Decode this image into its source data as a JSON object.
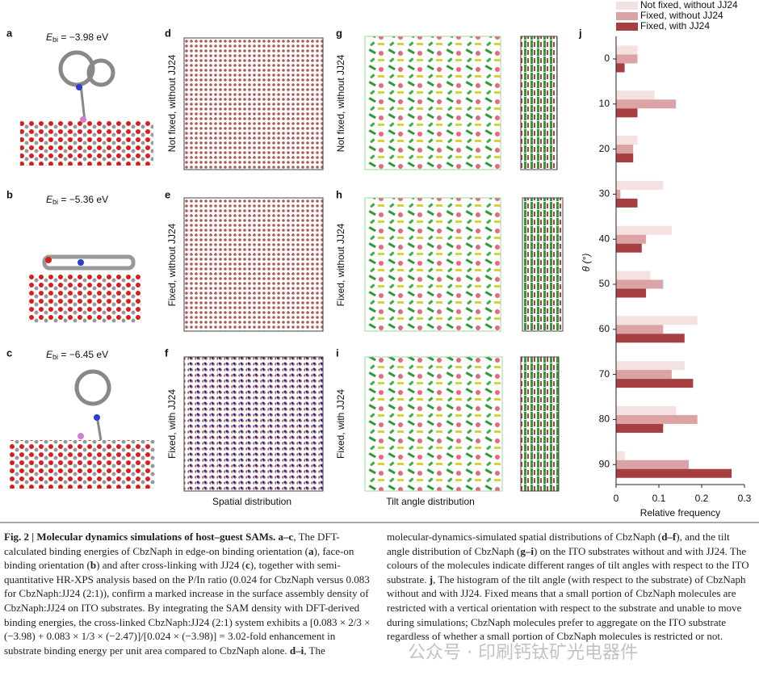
{
  "figure": {
    "panels": {
      "a": "a",
      "b": "b",
      "c": "c",
      "d": "d",
      "e": "e",
      "f": "f",
      "g": "g",
      "h": "h",
      "i": "i",
      "j": "j"
    },
    "energies": [
      {
        "symbol": "E",
        "subscript": "bi",
        "value": " = −3.98 eV"
      },
      {
        "symbol": "E",
        "subscript": "bi",
        "value": " = −5.36 eV"
      },
      {
        "symbol": "E",
        "subscript": "bi",
        "value": " = −6.45 eV"
      }
    ],
    "conditions": [
      "Not fixed, without JJ24",
      "Fixed, without JJ24",
      "Fixed, with JJ24"
    ],
    "column_titles": [
      "Spatial distribution",
      "Tilt angle distribution"
    ],
    "caption": {
      "segments": [
        {
          "text": "Fig. 2 | Molecular dynamics simulations of host–guest SAMs. a–c",
          "bold": true
        },
        {
          "text": ", The DFT-calculated binding energies of CbzNaph in edge-on binding orientation (",
          "bold": false
        },
        {
          "text": "a",
          "bold": true
        },
        {
          "text": "), face-on binding orientation (",
          "bold": false
        },
        {
          "text": "b",
          "bold": true
        },
        {
          "text": ") and after cross-linking with JJ24 (",
          "bold": false
        },
        {
          "text": "c",
          "bold": true
        },
        {
          "text": "), together with semi-quantitative HR-XPS analysis based on the P/In ratio (0.024 for CbzNaph versus 0.083 for CbzNaph:JJ24 (2:1)), confirm a marked increase in the surface assembly density of CbzNaph:JJ24 on ITO substrates. By integrating the SAM density with DFT-derived binding energies, the cross-linked CbzNaph:JJ24 (2:1) system exhibits a [0.083 × 2/3 × (−3.98) + 0.083 × 1/3 × (−2.47)]/[0.024 × (−3.98)] = 3.02-fold enhancement in substrate binding energy per unit area compared to CbzNaph alone. ",
          "bold": false
        },
        {
          "text": "d–i",
          "bold": true
        },
        {
          "text": ", The molecular-dynamics-simulated spatial distributions of CbzNaph (",
          "bold": false
        },
        {
          "text": "d–f",
          "bold": true
        },
        {
          "text": "), and the tilt angle distribution of CbzNaph (",
          "bold": false
        },
        {
          "text": "g–i",
          "bold": true
        },
        {
          "text": ") on the ITO substrates without and with JJ24. The colours of the molecules indicate different ranges of tilt angles with respect to the ITO substrate. ",
          "bold": false
        },
        {
          "text": "j",
          "bold": true
        },
        {
          "text": ", The histogram of the tilt angle (with respect to the substrate) of CbzNaph without and with JJ24. Fixed means that a small portion of CbzNaph molecules are restricted with a vertical orientation with respect to the substrate and unable to move during simulations; CbzNaph molecules prefer to aggregate on the ITO substrate regardless of whether a small portion of CbzNaph molecules is restricted or not.",
          "bold": false
        }
      ]
    },
    "watermark": "公众号 · 印刷钙钛矿光电器件"
  },
  "chart_data": {
    "type": "barh",
    "ylabel": "θ (°)",
    "xlabel": "Relative frequency",
    "categories": [
      "0",
      "10",
      "20",
      "30",
      "40",
      "50",
      "60",
      "70",
      "80",
      "90"
    ],
    "series": [
      {
        "name": "Not fixed, without JJ24",
        "color": "#f4e1e1",
        "values": [
          0.05,
          0.09,
          0.05,
          0.11,
          0.13,
          0.08,
          0.19,
          0.16,
          0.14,
          0.02
        ]
      },
      {
        "name": "Fixed, without JJ24",
        "color": "#dba3a4",
        "values": [
          0.05,
          0.14,
          0.04,
          0.01,
          0.07,
          0.11,
          0.11,
          0.13,
          0.19,
          0.17
        ]
      },
      {
        "name": "Fixed, with JJ24",
        "color": "#a63f41",
        "values": [
          0.02,
          0.05,
          0.04,
          0.05,
          0.06,
          0.07,
          0.16,
          0.18,
          0.11,
          0.27
        ]
      }
    ],
    "xlim": [
      0,
      0.3
    ],
    "xticks": [
      0,
      0.1,
      0.2,
      0.3
    ],
    "legend": "top"
  }
}
